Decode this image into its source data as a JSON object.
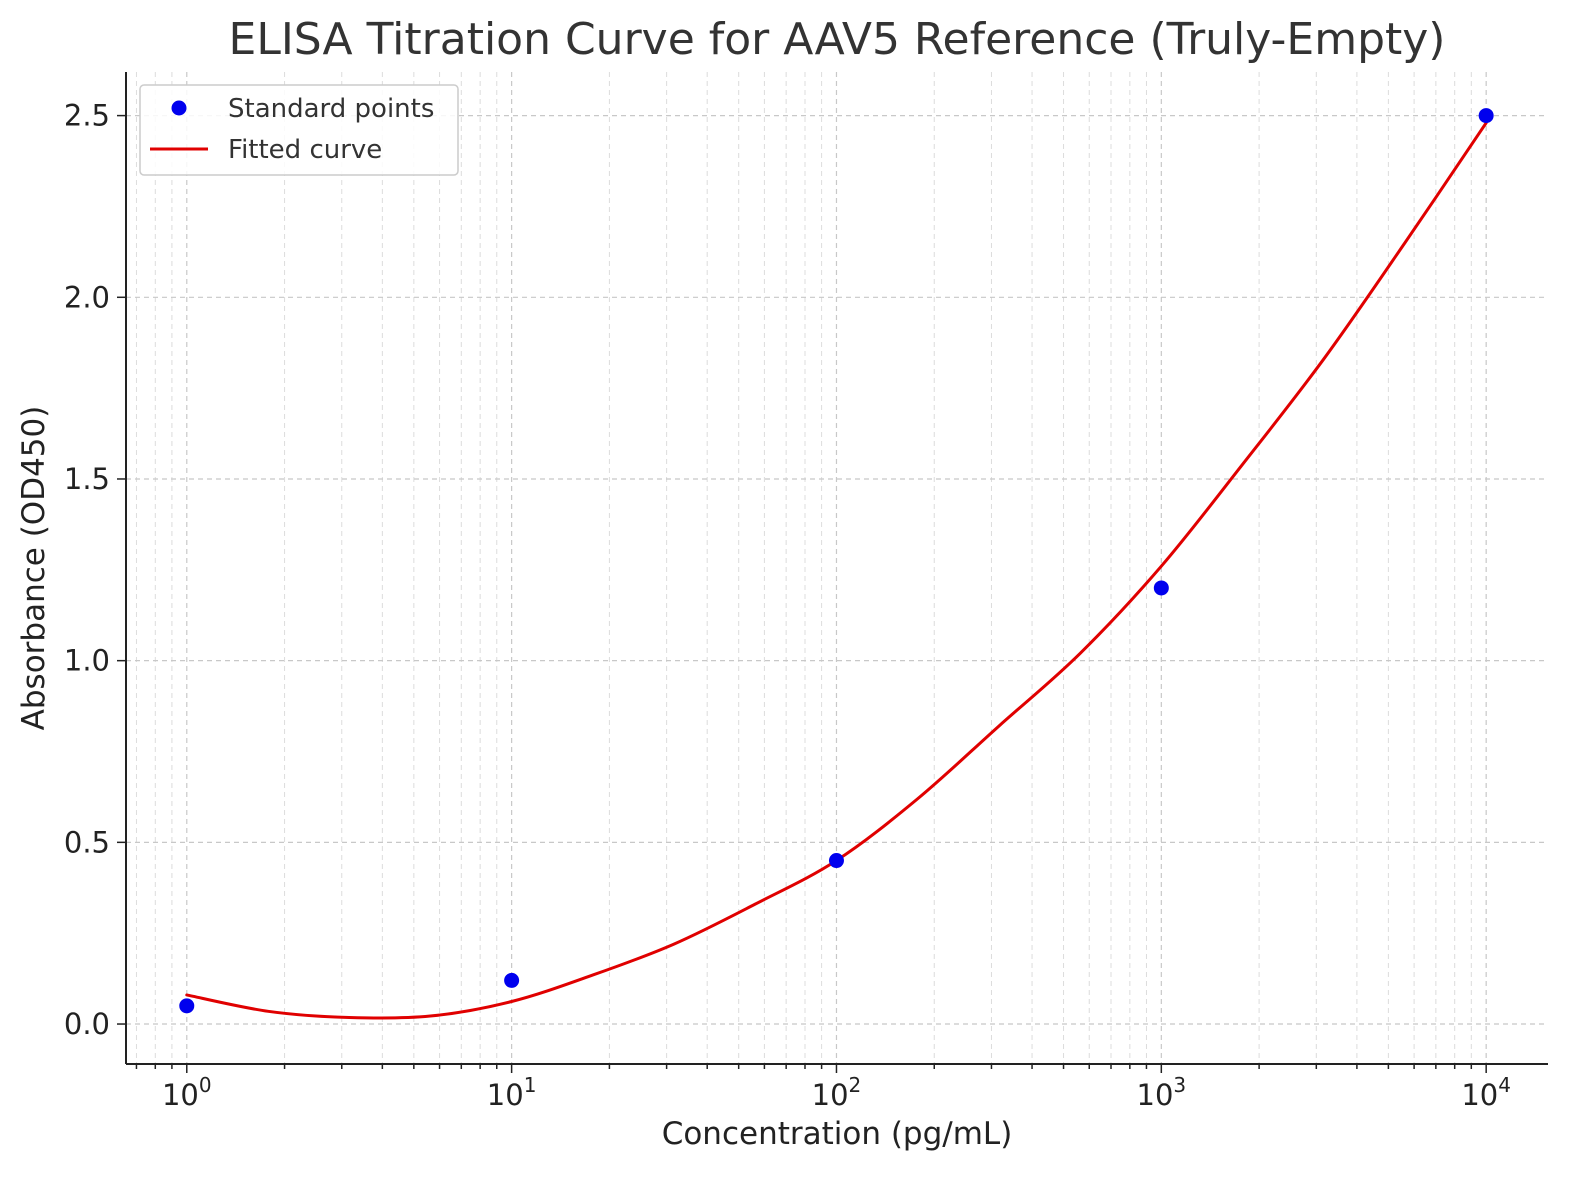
{
  "chart_data": {
    "type": "scatter",
    "title": "ELISA Titration Curve for AAV5 Reference (Truly-Empty)",
    "xlabel": "Concentration (pg/mL)",
    "ylabel": "Absorbance (OD450)",
    "xscale": "log",
    "xlim": [
      0.65,
      15500
    ],
    "ylim": [
      -0.11,
      2.62
    ],
    "x_ticks": [
      {
        "base": "10",
        "exp": "0",
        "value": 1
      },
      {
        "base": "10",
        "exp": "1",
        "value": 10
      },
      {
        "base": "10",
        "exp": "2",
        "value": 100
      },
      {
        "base": "10",
        "exp": "3",
        "value": 1000
      },
      {
        "base": "10",
        "exp": "4",
        "value": 10000
      }
    ],
    "y_ticks": [
      {
        "label": "0.0",
        "value": 0.0
      },
      {
        "label": "0.5",
        "value": 0.5
      },
      {
        "label": "1.0",
        "value": 1.0
      },
      {
        "label": "1.5",
        "value": 1.5
      },
      {
        "label": "2.0",
        "value": 2.0
      },
      {
        "label": "2.5",
        "value": 2.5
      }
    ],
    "grid": true,
    "legend_position": "top-left",
    "series": [
      {
        "name": "Standard points",
        "kind": "markers",
        "color": "#0000ee",
        "x": [
          1,
          10,
          100,
          1000,
          10000
        ],
        "y": [
          0.05,
          0.12,
          0.45,
          1.2,
          2.5
        ]
      },
      {
        "name": "Fitted curve",
        "kind": "line",
        "color": "#e00000",
        "x": [
          1,
          1.78,
          3.16,
          5.62,
          10,
          17.8,
          31.6,
          56.2,
          100,
          177.8,
          316.2,
          562.3,
          1000,
          1778,
          3162,
          5623,
          10000
        ],
        "y": [
          0.08,
          0.035,
          0.018,
          0.022,
          0.062,
          0.135,
          0.22,
          0.33,
          0.45,
          0.62,
          0.82,
          1.02,
          1.26,
          1.54,
          1.83,
          2.15,
          2.48
        ]
      }
    ]
  }
}
